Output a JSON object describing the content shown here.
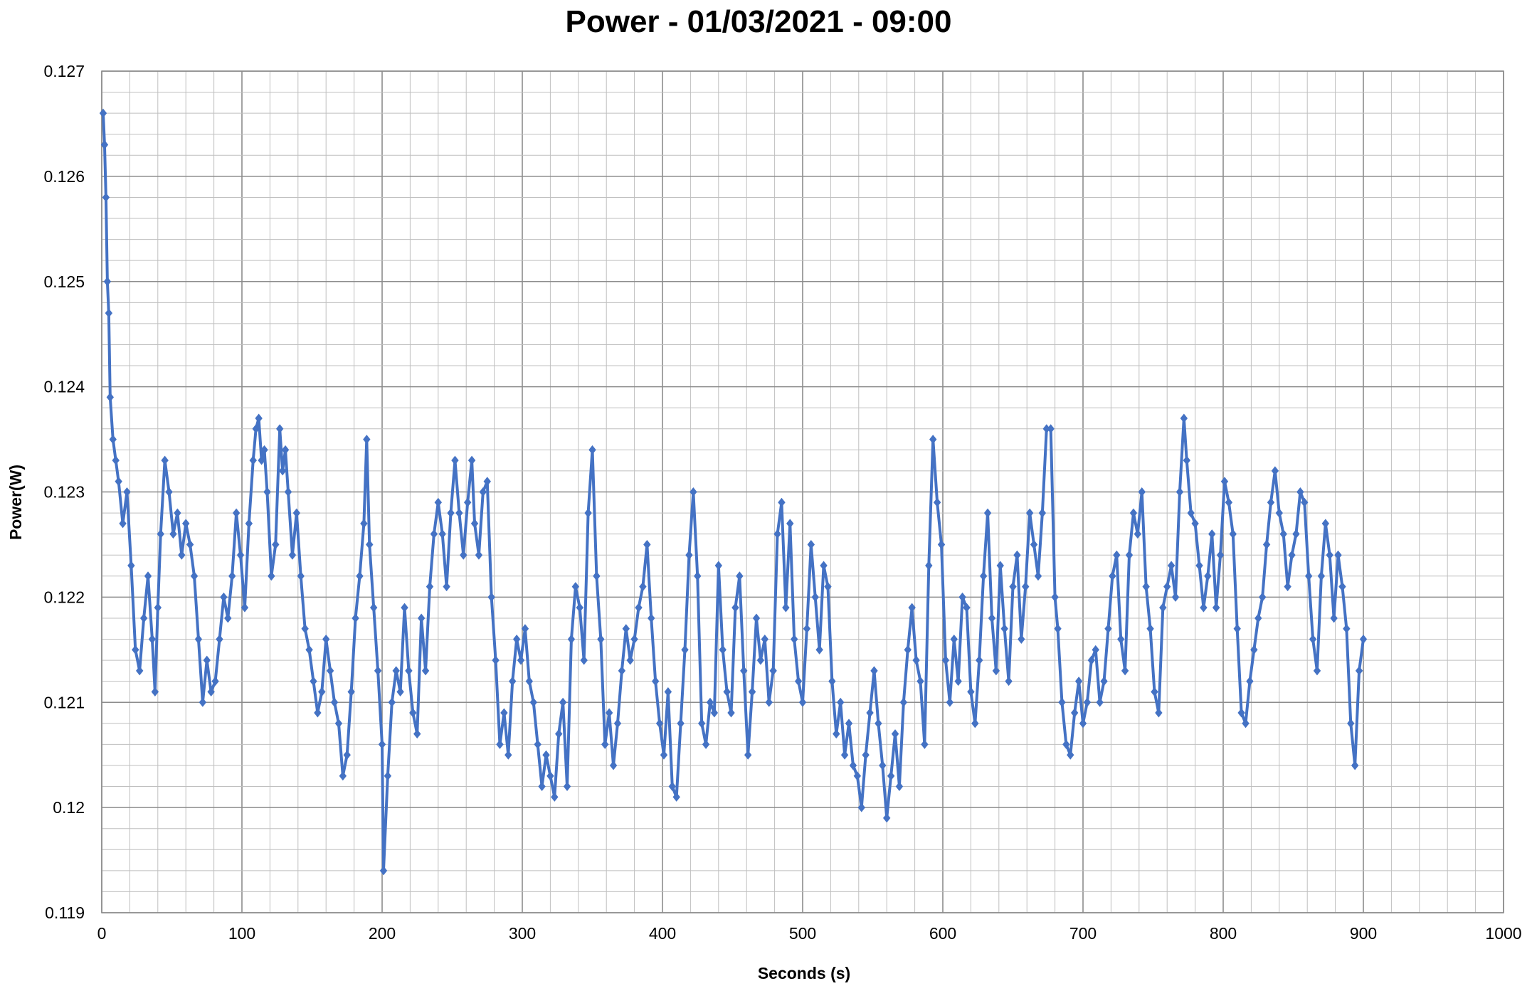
{
  "chart_data": {
    "type": "line",
    "title": "Power - 01/03/2021 - 09:00",
    "xlabel": "Seconds (s)",
    "ylabel": "Power(W)",
    "xlim": [
      0,
      1000
    ],
    "ylim": [
      0.119,
      0.127
    ],
    "x_ticks": [
      "0",
      "100",
      "200",
      "300",
      "400",
      "500",
      "600",
      "700",
      "800",
      "900",
      "1000"
    ],
    "y_ticks": [
      "0.119",
      "0.12",
      "0.121",
      "0.122",
      "0.123",
      "0.124",
      "0.125",
      "0.126",
      "0.127"
    ],
    "grid": true,
    "legend": "none",
    "marker": "diamond",
    "color": "#4472C4",
    "series": [
      {
        "x": [
          1,
          2,
          3,
          4,
          5,
          6,
          8,
          10,
          12,
          15,
          18,
          21,
          24,
          27,
          30,
          33,
          36,
          38,
          40,
          42,
          45,
          48,
          51,
          54,
          57,
          60,
          63,
          66,
          69,
          72,
          75,
          78,
          81,
          84,
          87,
          90,
          93,
          96,
          99,
          102,
          105,
          108,
          110,
          112,
          114,
          116,
          118,
          121,
          124,
          127,
          129,
          131,
          133,
          136,
          139,
          142,
          145,
          148,
          151,
          154,
          157,
          160,
          163,
          166,
          169,
          172,
          175,
          178,
          181,
          184,
          187,
          189,
          191,
          194,
          197,
          200,
          201,
          204,
          207,
          210,
          213,
          216,
          219,
          222,
          225,
          228,
          231,
          234,
          237,
          240,
          243,
          246,
          249,
          252,
          255,
          258,
          261,
          264,
          266,
          269,
          272,
          275,
          278,
          281,
          284,
          287,
          290,
          293,
          296,
          299,
          302,
          305,
          308,
          311,
          314,
          317,
          320,
          323,
          326,
          329,
          332,
          335,
          338,
          341,
          344,
          347,
          350,
          353,
          356,
          359,
          362,
          365,
          368,
          371,
          374,
          377,
          380,
          383,
          386,
          389,
          392,
          395,
          398,
          401,
          404,
          407,
          410,
          413,
          416,
          419,
          422,
          425,
          428,
          431,
          434,
          437,
          440,
          443,
          446,
          449,
          452,
          455,
          458,
          461,
          464,
          467,
          470,
          473,
          476,
          479,
          482,
          485,
          488,
          491,
          494,
          497,
          500,
          503,
          506,
          509,
          512,
          515,
          518,
          521,
          524,
          527,
          530,
          533,
          536,
          539,
          542,
          545,
          548,
          551,
          554,
          557,
          560,
          563,
          566,
          569,
          572,
          575,
          578,
          581,
          584,
          587,
          590,
          593,
          596,
          599,
          602,
          605,
          608,
          611,
          614,
          617,
          620,
          623,
          626,
          629,
          632,
          635,
          638,
          641,
          644,
          647,
          650,
          653,
          656,
          659,
          662,
          665,
          668,
          671,
          674,
          677,
          680,
          682,
          685,
          688,
          691,
          694,
          697,
          700,
          703,
          706,
          709,
          712,
          715,
          718,
          721,
          724,
          727,
          730,
          733,
          736,
          739,
          742,
          745,
          748,
          751,
          754,
          757,
          760,
          763,
          766,
          769,
          772,
          774,
          777,
          780,
          783,
          786,
          789,
          792,
          795,
          798,
          801,
          804,
          807,
          810,
          813,
          816,
          819,
          822,
          825,
          828,
          831,
          834,
          837,
          840,
          843,
          846,
          849,
          852,
          855,
          858,
          861,
          864,
          867,
          870,
          873,
          876,
          879,
          882,
          885,
          888,
          891,
          894,
          897,
          900
        ],
        "y": [
          0.1266,
          0.1263,
          0.1258,
          0.125,
          0.1247,
          0.1239,
          0.1235,
          0.1233,
          0.1231,
          0.1227,
          0.123,
          0.1223,
          0.1215,
          0.1213,
          0.1218,
          0.1222,
          0.1216,
          0.1211,
          0.1219,
          0.1226,
          0.1233,
          0.123,
          0.1226,
          0.1228,
          0.1224,
          0.1227,
          0.1225,
          0.1222,
          0.1216,
          0.121,
          0.1214,
          0.1211,
          0.1212,
          0.1216,
          0.122,
          0.1218,
          0.1222,
          0.1228,
          0.1224,
          0.1219,
          0.1227,
          0.1233,
          0.1236,
          0.1237,
          0.1233,
          0.1234,
          0.123,
          0.1222,
          0.1225,
          0.1236,
          0.1232,
          0.1234,
          0.123,
          0.1224,
          0.1228,
          0.1222,
          0.1217,
          0.1215,
          0.1212,
          0.1209,
          0.1211,
          0.1216,
          0.1213,
          0.121,
          0.1208,
          0.1203,
          0.1205,
          0.1211,
          0.1218,
          0.1222,
          0.1227,
          0.1235,
          0.1225,
          0.1219,
          0.1213,
          0.1206,
          0.1194,
          0.1203,
          0.121,
          0.1213,
          0.1211,
          0.1219,
          0.1213,
          0.1209,
          0.1207,
          0.1218,
          0.1213,
          0.1221,
          0.1226,
          0.1229,
          0.1226,
          0.1221,
          0.1228,
          0.1233,
          0.1228,
          0.1224,
          0.1229,
          0.1233,
          0.1227,
          0.1224,
          0.123,
          0.1231,
          0.122,
          0.1214,
          0.1206,
          0.1209,
          0.1205,
          0.1212,
          0.1216,
          0.1214,
          0.1217,
          0.1212,
          0.121,
          0.1206,
          0.1202,
          0.1205,
          0.1203,
          0.1201,
          0.1207,
          0.121,
          0.1202,
          0.1216,
          0.1221,
          0.1219,
          0.1214,
          0.1228,
          0.1234,
          0.1222,
          0.1216,
          0.1206,
          0.1209,
          0.1204,
          0.1208,
          0.1213,
          0.1217,
          0.1214,
          0.1216,
          0.1219,
          0.1221,
          0.1225,
          0.1218,
          0.1212,
          0.1208,
          0.1205,
          0.1211,
          0.1202,
          0.1201,
          0.1208,
          0.1215,
          0.1224,
          0.123,
          0.1222,
          0.1208,
          0.1206,
          0.121,
          0.1209,
          0.1223,
          0.1215,
          0.1211,
          0.1209,
          0.1219,
          0.1222,
          0.1213,
          0.1205,
          0.1211,
          0.1218,
          0.1214,
          0.1216,
          0.121,
          0.1213,
          0.1226,
          0.1229,
          0.1219,
          0.1227,
          0.1216,
          0.1212,
          0.121,
          0.1217,
          0.1225,
          0.122,
          0.1215,
          0.1223,
          0.1221,
          0.1212,
          0.1207,
          0.121,
          0.1205,
          0.1208,
          0.1204,
          0.1203,
          0.12,
          0.1205,
          0.1209,
          0.1213,
          0.1208,
          0.1204,
          0.1199,
          0.1203,
          0.1207,
          0.1202,
          0.121,
          0.1215,
          0.1219,
          0.1214,
          0.1212,
          0.1206,
          0.1223,
          0.1235,
          0.1229,
          0.1225,
          0.1214,
          0.121,
          0.1216,
          0.1212,
          0.122,
          0.1219,
          0.1211,
          0.1208,
          0.1214,
          0.1222,
          0.1228,
          0.1218,
          0.1213,
          0.1223,
          0.1217,
          0.1212,
          0.1221,
          0.1224,
          0.1216,
          0.1221,
          0.1228,
          0.1225,
          0.1222,
          0.1228,
          0.1236,
          0.1236,
          0.122,
          0.1217,
          0.121,
          0.1206,
          0.1205,
          0.1209,
          0.1212,
          0.1208,
          0.121,
          0.1214,
          0.1215,
          0.121,
          0.1212,
          0.1217,
          0.1222,
          0.1224,
          0.1216,
          0.1213,
          0.1224,
          0.1228,
          0.1226,
          0.123,
          0.1221,
          0.1217,
          0.1211,
          0.1209,
          0.1219,
          0.1221,
          0.1223,
          0.122,
          0.123,
          0.1237,
          0.1233,
          0.1228,
          0.1227,
          0.1223,
          0.1219,
          0.1222,
          0.1226,
          0.1219,
          0.1224,
          0.1231,
          0.1229,
          0.1226,
          0.1217,
          0.1209,
          0.1208,
          0.1212,
          0.1215,
          0.1218,
          0.122,
          0.1225,
          0.1229,
          0.1232,
          0.1228,
          0.1226,
          0.1221,
          0.1224,
          0.1226,
          0.123,
          0.1229,
          0.1222,
          0.1216,
          0.1213,
          0.1222,
          0.1227,
          0.1224,
          0.1218,
          0.1224,
          0.1221,
          0.1217,
          0.1208,
          0.1204,
          0.1213,
          0.1216
        ]
      }
    ]
  }
}
